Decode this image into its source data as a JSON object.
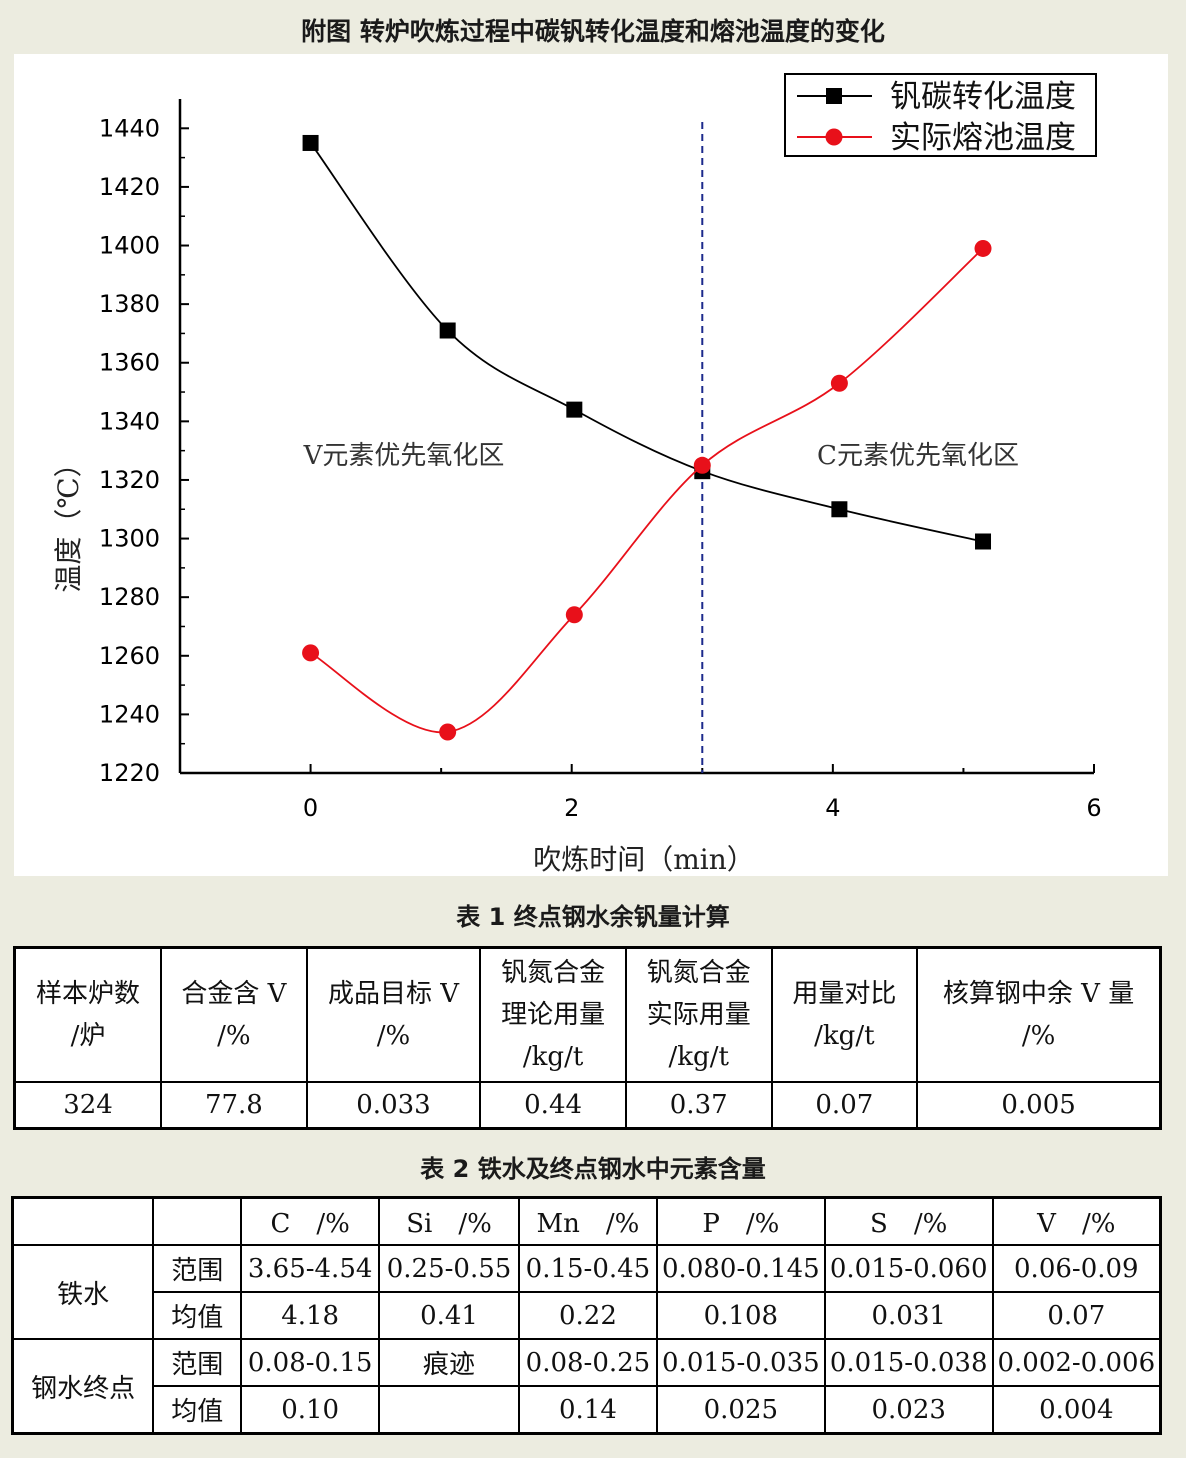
{
  "figure_title": "附图 转炉吹炼过程中碳钒转化温度和熔池温度的变化",
  "chart_data": {
    "type": "line",
    "x_label": "吹炼时间（min）",
    "y_label": "温度（℃）",
    "xlim": [
      -1,
      6
    ],
    "ylim": [
      1220,
      1450
    ],
    "x_ticks": [
      "0",
      "2",
      "4",
      "6"
    ],
    "y_ticks": [
      "1220",
      "1240",
      "1260",
      "1280",
      "1300",
      "1320",
      "1340",
      "1360",
      "1380",
      "1400",
      "1420",
      "1440"
    ],
    "series": [
      {
        "name": "钒碳转化温度",
        "color": "#000000",
        "marker": "square",
        "x": [
          0,
          1.05,
          2.02,
          3.0,
          4.05,
          5.15
        ],
        "y": [
          1435,
          1371,
          1344,
          1323,
          1310,
          1299
        ]
      },
      {
        "name": "实际熔池温度",
        "color": "#e8101a",
        "marker": "circle",
        "x": [
          0,
          1.05,
          2.02,
          3.0,
          4.05,
          5.15
        ],
        "y": [
          1261,
          1234,
          1274,
          1325,
          1353,
          1399
        ]
      }
    ],
    "vline_x": 3.0,
    "annotations": [
      "V元素优先氧化区",
      "C元素优先氧化区"
    ],
    "legend_position": "top-right"
  },
  "table1": {
    "title": "表 1 终点钢水余钒量计算",
    "headers": [
      [
        "样本炉数",
        "/炉"
      ],
      [
        "合金含 V",
        "/%"
      ],
      [
        "成品目标 V",
        "/%"
      ],
      [
        "钒氮合金",
        "理论用量",
        "/kg/t"
      ],
      [
        "钒氮合金",
        "实际用量",
        "/kg/t"
      ],
      [
        "用量对比",
        "/kg/t"
      ],
      [
        "核算钢中余 V 量",
        "/%"
      ]
    ],
    "row": [
      "324",
      "77.8",
      "0.033",
      "0.44",
      "0.37",
      "0.07",
      "0.005"
    ]
  },
  "table2": {
    "title": "表 2 铁水及终点钢水中元素含量",
    "columns": [
      "C　/%",
      "Si　/%",
      "Mn　/%",
      "P　/%",
      "S　/%",
      "V　/%"
    ],
    "groups": [
      {
        "name": "铁水",
        "rows": [
          {
            "label": "范围",
            "values": [
              "3.65-4.54",
              "0.25-0.55",
              "0.15-0.45",
              "0.080-0.145",
              "0.015-0.060",
              "0.06-0.09"
            ]
          },
          {
            "label": "均值",
            "values": [
              "4.18",
              "0.41",
              "0.22",
              "0.108",
              "0.031",
              "0.07"
            ]
          }
        ]
      },
      {
        "name": "钢水终点",
        "rows": [
          {
            "label": "范围",
            "values": [
              "0.08-0.15",
              "痕迹",
              "0.08-0.25",
              "0.015-0.035",
              "0.015-0.038",
              "0.002-0.006"
            ]
          },
          {
            "label": "均值",
            "values": [
              "0.10",
              "",
              "0.14",
              "0.025",
              "0.023",
              "0.004"
            ]
          }
        ]
      }
    ]
  }
}
